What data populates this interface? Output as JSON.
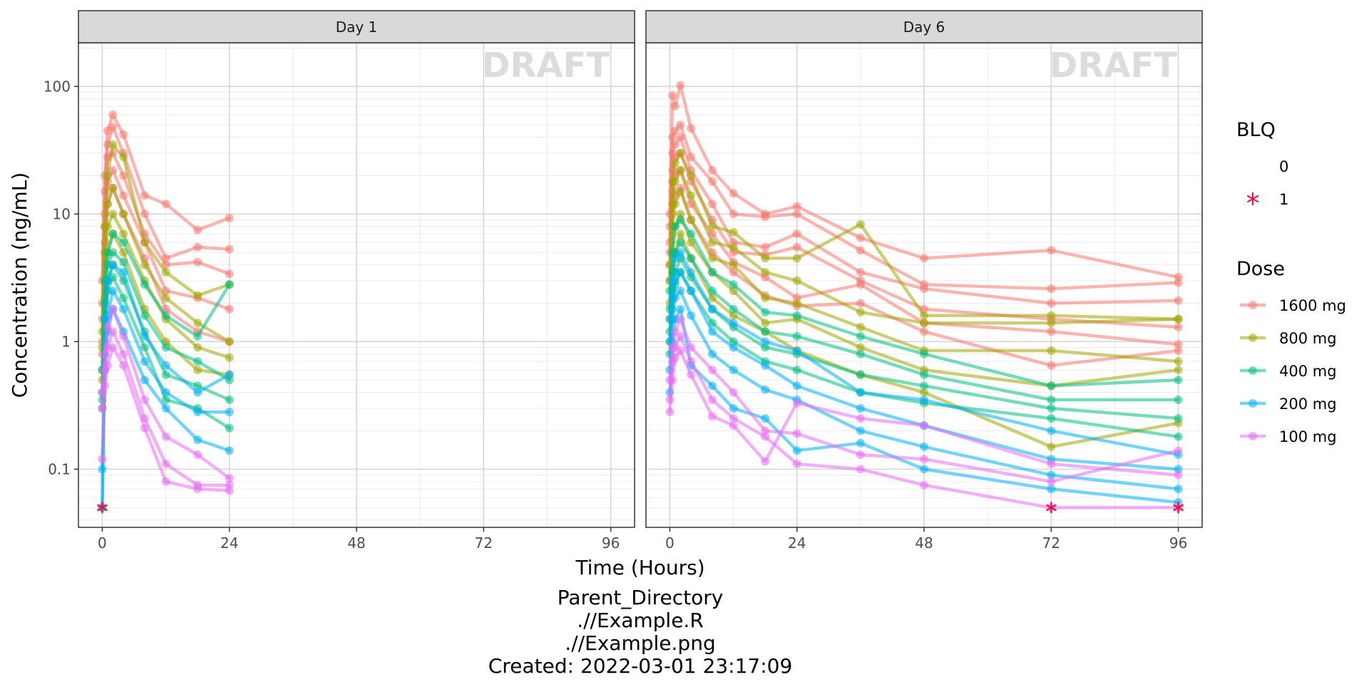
{
  "chart_data": {
    "type": "line",
    "facets": [
      "Day 1",
      "Day 6"
    ],
    "watermark": "DRAFT",
    "xlabel": "Time (Hours)",
    "ylabel": "Concentration (ng/mL)",
    "x_ticks": [
      "0",
      "24",
      "48",
      "72",
      "96"
    ],
    "x_tick_values": [
      0,
      24,
      48,
      72,
      96
    ],
    "xlim": [
      -4.5,
      100.5
    ],
    "y_scale": "log10",
    "y_ticks": [
      "0.1",
      "1",
      "10",
      "100"
    ],
    "y_tick_values": [
      0.1,
      1,
      10,
      100
    ],
    "ylim": [
      0.035,
      220
    ],
    "grid": true,
    "legend_position": "right",
    "legend": {
      "blq_title": "BLQ",
      "blq_items": [
        {
          "label": "0",
          "marker": "none"
        },
        {
          "label": "1",
          "marker": "asterisk",
          "color": "#ee1144"
        }
      ],
      "dose_title": "Dose",
      "dose_items": [
        {
          "label": "1600 mg",
          "color": "#F8766D"
        },
        {
          "label": "800 mg",
          "color": "#A3A500"
        },
        {
          "label": "400 mg",
          "color": "#00BF7D"
        },
        {
          "label": "200 mg",
          "color": "#00B0F6"
        },
        {
          "label": "100 mg",
          "color": "#E76BF3"
        }
      ]
    },
    "caption_lines": [
      "Parent_Directory",
      ".//Example.R",
      ".//Example.png",
      "Created: 2022-03-01 23:17:09"
    ],
    "series": [
      {
        "facet": "Day 1",
        "name": "1600 mg",
        "x": [
          0,
          0.5,
          1,
          2,
          4,
          8,
          12,
          18,
          24
        ],
        "y": [
          3.0,
          20,
          45,
          60,
          42,
          14,
          12,
          7.5,
          9.3
        ]
      },
      {
        "facet": "Day 1",
        "name": "1600 mg",
        "x": [
          0,
          0.5,
          1,
          2,
          4,
          8,
          12,
          18,
          24
        ],
        "y": [
          2.0,
          15,
          35,
          48,
          30,
          10,
          4.5,
          5.5,
          5.3
        ]
      },
      {
        "facet": "Day 1",
        "name": "1600 mg",
        "x": [
          0,
          0.5,
          1,
          2,
          4,
          8,
          12,
          18,
          24
        ],
        "y": [
          1.5,
          10,
          28,
          30,
          20,
          7,
          4.0,
          4.2,
          3.4
        ]
      },
      {
        "facet": "Day 1",
        "name": "1600 mg",
        "x": [
          0,
          0.5,
          1,
          2,
          4,
          8,
          12,
          18,
          24
        ],
        "y": [
          1.0,
          8,
          18,
          22,
          14,
          6,
          2.5,
          2.2,
          1.8
        ]
      },
      {
        "facet": "Day 1",
        "name": "1600 mg",
        "x": [
          0,
          0.5,
          1,
          2,
          4,
          8,
          12,
          18,
          24
        ],
        "y": [
          0.8,
          6,
          12,
          16,
          10,
          4.5,
          1.8,
          1.2,
          1.0
        ]
      },
      {
        "facet": "Day 1",
        "name": "800 mg",
        "x": [
          0,
          0.5,
          1,
          2,
          4,
          8,
          12,
          18,
          24
        ],
        "y": [
          1.2,
          8,
          20,
          35,
          28,
          6,
          3.5,
          2.3,
          2.8
        ]
      },
      {
        "facet": "Day 1",
        "name": "800 mg",
        "x": [
          0,
          0.5,
          1,
          2,
          4,
          8,
          12,
          18,
          24
        ],
        "y": [
          0.9,
          5,
          12,
          16,
          10,
          4,
          2.2,
          1.4,
          1.0
        ]
      },
      {
        "facet": "Day 1",
        "name": "800 mg",
        "x": [
          0,
          0.5,
          1,
          2,
          4,
          8,
          12,
          18,
          24
        ],
        "y": [
          0.6,
          3,
          8,
          10,
          7,
          3,
          1.5,
          0.9,
          0.75
        ]
      },
      {
        "facet": "Day 1",
        "name": "800 mg",
        "x": [
          0,
          0.5,
          1,
          2,
          4,
          8,
          12,
          18,
          24
        ],
        "y": [
          0.5,
          2.2,
          5,
          7,
          5,
          1.8,
          1.0,
          0.6,
          0.55
        ]
      },
      {
        "facet": "Day 1",
        "name": "400 mg",
        "x": [
          0,
          0.5,
          1,
          2,
          4,
          8,
          12,
          18,
          24
        ],
        "y": [
          0.6,
          3,
          5,
          7,
          6,
          2.8,
          1.6,
          1.1,
          2.8
        ]
      },
      {
        "facet": "Day 1",
        "name": "400 mg",
        "x": [
          0,
          0.5,
          1,
          2,
          4,
          8,
          12,
          18,
          24
        ],
        "y": [
          0.4,
          2,
          4,
          5,
          4.2,
          1.6,
          0.9,
          0.7,
          0.5
        ]
      },
      {
        "facet": "Day 1",
        "name": "400 mg",
        "x": [
          0,
          0.5,
          1,
          2,
          4,
          8,
          12,
          18,
          24
        ],
        "y": [
          0.3,
          1.5,
          3,
          4,
          3,
          1.2,
          0.55,
          0.45,
          0.35
        ]
      },
      {
        "facet": "Day 1",
        "name": "400 mg",
        "x": [
          0,
          0.5,
          1,
          2,
          4,
          8,
          12,
          18,
          24
        ],
        "y": [
          0.35,
          1.2,
          2.5,
          3.2,
          2.2,
          0.9,
          0.35,
          0.3,
          0.21
        ]
      },
      {
        "facet": "Day 1",
        "name": "200 mg",
        "x": [
          0,
          0.5,
          1,
          2,
          4,
          8,
          12,
          18,
          24
        ],
        "y": [
          0.05,
          1.5,
          3,
          4,
          3.5,
          1.1,
          0.65,
          0.4,
          0.55
        ]
      },
      {
        "facet": "Day 1",
        "name": "200 mg",
        "x": [
          0,
          0.5,
          1,
          2,
          4,
          8,
          12,
          18,
          24
        ],
        "y": [
          0.05,
          0.8,
          1.6,
          2.5,
          1.8,
          0.7,
          0.4,
          0.28,
          0.28
        ]
      },
      {
        "facet": "Day 1",
        "name": "200 mg",
        "x": [
          0,
          0.5,
          1,
          2,
          4,
          8,
          12,
          18,
          24
        ],
        "y": [
          0.1,
          0.6,
          1.2,
          1.8,
          1.2,
          0.5,
          0.3,
          0.17,
          0.14
        ]
      },
      {
        "facet": "Day 1",
        "name": "100 mg",
        "x": [
          0,
          0.5,
          1,
          2,
          4,
          8,
          12,
          18,
          24
        ],
        "y": [
          0.4,
          0.8,
          1.3,
          1.8,
          1.1,
          0.35,
          0.18,
          0.13,
          0.085
        ]
      },
      {
        "facet": "Day 1",
        "name": "100 mg",
        "x": [
          0,
          0.5,
          1,
          2,
          4,
          8,
          12,
          18,
          24
        ],
        "y": [
          0.3,
          0.6,
          0.9,
          1.2,
          0.8,
          0.25,
          0.11,
          0.075,
          0.075
        ]
      },
      {
        "facet": "Day 1",
        "name": "100 mg",
        "x": [
          0,
          0.5,
          1,
          2,
          4,
          8,
          12,
          18,
          24
        ],
        "y": [
          0.12,
          0.45,
          0.65,
          0.9,
          0.65,
          0.21,
          0.08,
          0.07,
          0.068
        ]
      },
      {
        "facet": "Day 6",
        "name": "1600 mg",
        "x": [
          0,
          0.5,
          1,
          2,
          4,
          8,
          12,
          18,
          24,
          36,
          48,
          72,
          96
        ],
        "y": [
          10,
          85,
          70,
          102,
          47,
          22,
          14.5,
          10,
          11.5,
          6.5,
          4.5,
          5.2,
          3.2
        ]
      },
      {
        "facet": "Day 6",
        "name": "1600 mg",
        "x": [
          0,
          0.5,
          1,
          2,
          4,
          8,
          12,
          18,
          24,
          36,
          48,
          72,
          96
        ],
        "y": [
          8,
          40,
          45,
          50,
          28,
          18,
          10,
          9.5,
          10,
          5.2,
          2.8,
          2.6,
          2.9
        ]
      },
      {
        "facet": "Day 6",
        "name": "1600 mg",
        "x": [
          0,
          0.5,
          1,
          2,
          4,
          8,
          12,
          18,
          24,
          36,
          48,
          72,
          96
        ],
        "y": [
          6,
          30,
          35,
          40,
          22,
          12,
          6,
          5.5,
          7,
          3.5,
          2.6,
          2.0,
          2.1
        ]
      },
      {
        "facet": "Day 6",
        "name": "1600 mg",
        "x": [
          0,
          0.5,
          1,
          2,
          4,
          8,
          12,
          18,
          24,
          36,
          48,
          72,
          96
        ],
        "y": [
          5,
          22,
          28,
          30,
          18,
          9,
          5,
          4.8,
          5.5,
          3.0,
          1.8,
          1.5,
          1.3
        ]
      },
      {
        "facet": "Day 6",
        "name": "1600 mg",
        "x": [
          0,
          0.5,
          1,
          2,
          4,
          8,
          12,
          18,
          24,
          36,
          48,
          72,
          96
        ],
        "y": [
          4,
          15,
          20,
          22,
          12,
          7,
          4.2,
          3.2,
          2.2,
          2.8,
          1.4,
          1.2,
          0.95
        ]
      },
      {
        "facet": "Day 6",
        "name": "1600 mg",
        "x": [
          0,
          0.5,
          1,
          2,
          4,
          8,
          12,
          18,
          24,
          36,
          48,
          72,
          96
        ],
        "y": [
          3,
          10,
          14,
          16,
          9,
          5,
          3.5,
          2.3,
          1.9,
          2.0,
          1.2,
          0.65,
          0.85
        ]
      },
      {
        "facet": "Day 6",
        "name": "800 mg",
        "x": [
          0,
          0.5,
          1,
          2,
          4,
          8,
          12,
          18,
          24,
          36,
          48,
          72,
          96
        ],
        "y": [
          4,
          18,
          25,
          30,
          20,
          8,
          7.2,
          4.5,
          4.5,
          8.3,
          1.6,
          1.6,
          1.5
        ]
      },
      {
        "facet": "Day 6",
        "name": "800 mg",
        "x": [
          0,
          0.5,
          1,
          2,
          4,
          8,
          12,
          18,
          24,
          36,
          48,
          72,
          96
        ],
        "y": [
          3,
          12,
          18,
          22,
          14,
          6,
          5.5,
          3.5,
          3.0,
          1.7,
          1.4,
          1.4,
          1.5
        ]
      },
      {
        "facet": "Day 6",
        "name": "800 mg",
        "x": [
          0,
          0.5,
          1,
          2,
          4,
          8,
          12,
          18,
          24,
          36,
          48,
          72,
          96
        ],
        "y": [
          2,
          8,
          12,
          15,
          9,
          4.5,
          4.0,
          2.2,
          2.0,
          1.3,
          0.85,
          0.85,
          0.7
        ]
      },
      {
        "facet": "Day 6",
        "name": "800 mg",
        "x": [
          0,
          0.5,
          1,
          2,
          4,
          8,
          12,
          18,
          24,
          36,
          48,
          72,
          96
        ],
        "y": [
          1.5,
          5,
          8,
          10,
          6,
          3.5,
          2.5,
          1.4,
          1.5,
          0.9,
          0.6,
          0.45,
          0.6
        ]
      },
      {
        "facet": "Day 6",
        "name": "800 mg",
        "x": [
          0,
          0.5,
          1,
          2,
          4,
          8,
          12,
          18,
          24,
          36,
          48,
          72,
          96
        ],
        "y": [
          1.0,
          3.5,
          5,
          7,
          4.5,
          2.2,
          1.6,
          1.2,
          0.85,
          0.55,
          0.4,
          0.15,
          0.23
        ]
      },
      {
        "facet": "Day 6",
        "name": "400 mg",
        "x": [
          0,
          0.5,
          1,
          2,
          4,
          8,
          12,
          18,
          24,
          36,
          48,
          72,
          96
        ],
        "y": [
          2.5,
          5,
          8,
          9,
          7,
          3.5,
          2.8,
          1.7,
          1.6,
          1.1,
          0.8,
          0.45,
          0.5
        ]
      },
      {
        "facet": "Day 6",
        "name": "400 mg",
        "x": [
          0,
          0.5,
          1,
          2,
          4,
          8,
          12,
          18,
          24,
          36,
          48,
          72,
          96
        ],
        "y": [
          1.8,
          3.5,
          5,
          6,
          4.5,
          2.5,
          1.8,
          1.2,
          1.1,
          0.8,
          0.55,
          0.35,
          0.35
        ]
      },
      {
        "facet": "Day 6",
        "name": "400 mg",
        "x": [
          0,
          0.5,
          1,
          2,
          4,
          8,
          12,
          18,
          24,
          36,
          48,
          72,
          96
        ],
        "y": [
          1.2,
          2.5,
          3.5,
          4.5,
          3.2,
          1.8,
          1.3,
          0.9,
          0.8,
          0.55,
          0.45,
          0.3,
          0.25
        ]
      },
      {
        "facet": "Day 6",
        "name": "400 mg",
        "x": [
          0,
          0.5,
          1,
          2,
          4,
          8,
          12,
          18,
          24,
          36,
          48,
          72,
          96
        ],
        "y": [
          0.8,
          1.8,
          2.8,
          3.5,
          2.5,
          1.4,
          1.0,
          0.7,
          0.6,
          0.4,
          0.33,
          0.25,
          0.18
        ]
      },
      {
        "facet": "Day 6",
        "name": "200 mg",
        "x": [
          0,
          0.5,
          1,
          2,
          4,
          8,
          12,
          18,
          24,
          36,
          48,
          72,
          96
        ],
        "y": [
          1.5,
          3,
          4.5,
          5,
          3.5,
          1.8,
          1.4,
          1.0,
          0.85,
          0.4,
          0.35,
          0.2,
          0.13
        ]
      },
      {
        "facet": "Day 6",
        "name": "200 mg",
        "x": [
          0,
          0.5,
          1,
          2,
          4,
          8,
          12,
          18,
          24,
          36,
          48,
          72,
          96
        ],
        "y": [
          1.0,
          2.2,
          3,
          3.5,
          2.5,
          1.2,
          0.9,
          0.65,
          0.45,
          0.3,
          0.22,
          0.12,
          0.1
        ]
      },
      {
        "facet": "Day 6",
        "name": "200 mg",
        "x": [
          0,
          0.5,
          1,
          2,
          4,
          8,
          12,
          18,
          24,
          36,
          48,
          72,
          96
        ],
        "y": [
          0.6,
          1.5,
          2.2,
          2.5,
          1.6,
          0.8,
          0.6,
          0.42,
          0.35,
          0.2,
          0.15,
          0.09,
          0.07
        ]
      },
      {
        "facet": "Day 6",
        "name": "200 mg",
        "x": [
          0,
          0.5,
          1,
          2,
          4,
          8,
          12,
          18,
          24,
          36,
          48,
          72,
          96
        ],
        "y": [
          0.4,
          1.0,
          1.5,
          1.8,
          0.65,
          0.45,
          0.3,
          0.25,
          0.14,
          0.16,
          0.1,
          0.07,
          0.055
        ]
      },
      {
        "facet": "Day 6",
        "name": "100 mg",
        "x": [
          0,
          0.5,
          1,
          2,
          4,
          8,
          12,
          18,
          24,
          36,
          48,
          72,
          96
        ],
        "y": [
          0.5,
          0.9,
          1.2,
          1.5,
          0.9,
          0.6,
          0.4,
          0.2,
          0.19,
          0.13,
          0.12,
          0.08,
          0.14
        ]
      },
      {
        "facet": "Day 6",
        "name": "100 mg",
        "x": [
          0,
          0.5,
          1,
          2,
          4,
          8,
          12,
          18,
          24,
          36,
          48,
          72,
          96
        ],
        "y": [
          0.35,
          0.7,
          0.9,
          1.1,
          0.7,
          0.35,
          0.25,
          0.18,
          0.11,
          0.1,
          0.075,
          0.05,
          0.05
        ]
      },
      {
        "facet": "Day 6",
        "name": "100 mg",
        "x": [
          0,
          0.5,
          1,
          2,
          4,
          8,
          12,
          18,
          24,
          36,
          48,
          72,
          96
        ],
        "y": [
          0.28,
          0.5,
          0.75,
          0.85,
          0.55,
          0.26,
          0.22,
          0.115,
          0.33,
          0.25,
          0.22,
          0.11,
          0.09
        ]
      }
    ],
    "blq_points": [
      {
        "facet": "Day 1",
        "x": 0,
        "y": 0.05
      },
      {
        "facet": "Day 1",
        "x": 0,
        "y": 0.05
      },
      {
        "facet": "Day 6",
        "x": 72,
        "y": 0.05
      },
      {
        "facet": "Day 6",
        "x": 96,
        "y": 0.05
      },
      {
        "facet": "Day 6",
        "x": 96,
        "y": 0.05
      }
    ]
  }
}
